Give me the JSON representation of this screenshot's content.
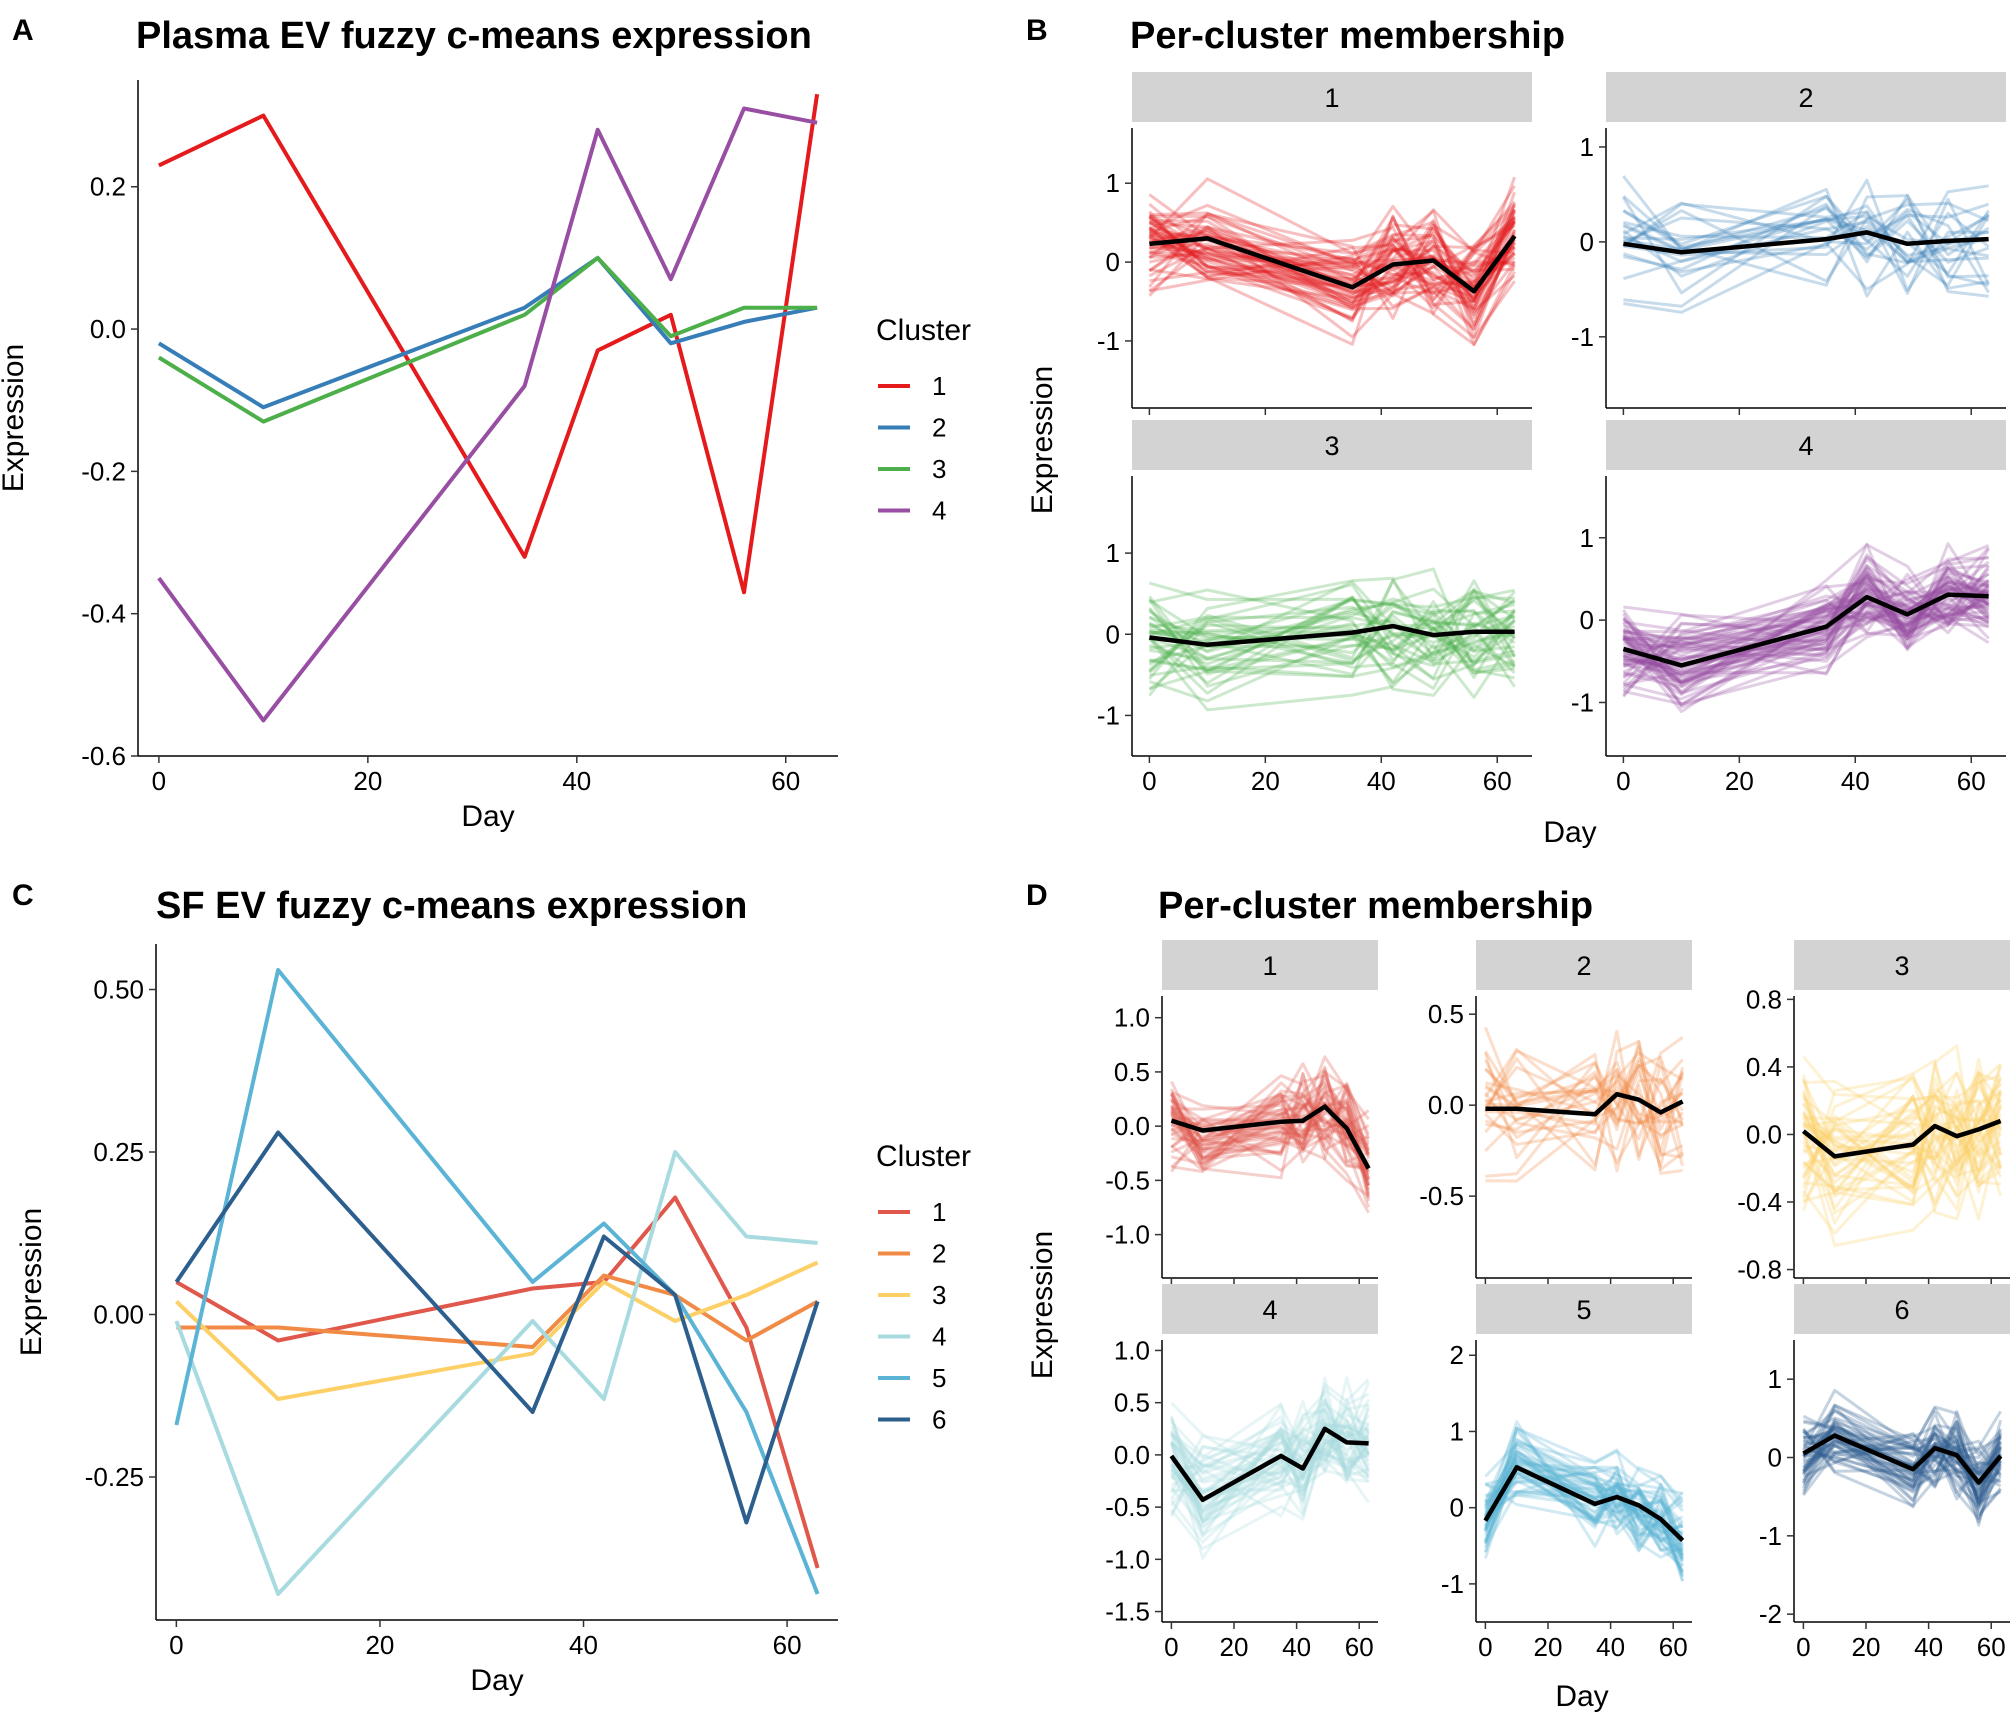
{
  "figure": {
    "panels": [
      {
        "letter": "A",
        "title": "Plasma EV fuzzy c-means expression"
      },
      {
        "letter": "B",
        "title": "Per-cluster membership"
      },
      {
        "letter": "C",
        "title": "SF EV fuzzy c-means expression"
      },
      {
        "letter": "D",
        "title": "Per-cluster membership"
      }
    ]
  },
  "chart_data": [
    {
      "id": "A",
      "type": "line",
      "title": "Plasma EV fuzzy c-means expression",
      "xlabel": "Day",
      "ylabel": "Expression",
      "x": [
        0,
        10,
        35,
        42,
        49,
        56,
        63
      ],
      "xlim": [
        -2,
        65
      ],
      "ylim": [
        -0.6,
        0.35
      ],
      "xticks": [
        0,
        20,
        40,
        60
      ],
      "xtick_labels": [
        "0",
        "20",
        "40",
        "60"
      ],
      "yticks": [
        -0.6,
        -0.4,
        -0.2,
        0.0,
        0.2
      ],
      "ytick_labels": [
        "-0.6",
        "-0.4",
        "-0.2",
        "0.0",
        "0.2"
      ],
      "grid": false,
      "legend": {
        "title": "Cluster",
        "position": "right"
      },
      "series": [
        {
          "name": "1",
          "color": "#E41A1C",
          "values": [
            0.23,
            0.3,
            -0.32,
            -0.03,
            0.02,
            -0.37,
            0.33
          ]
        },
        {
          "name": "2",
          "color": "#377EB8",
          "values": [
            -0.02,
            -0.11,
            0.03,
            0.1,
            -0.02,
            0.01,
            0.03
          ]
        },
        {
          "name": "3",
          "color": "#4DAF4A",
          "values": [
            -0.04,
            -0.13,
            0.02,
            0.1,
            -0.01,
            0.03,
            0.03
          ]
        },
        {
          "name": "4",
          "color": "#984EA3",
          "values": [
            -0.35,
            -0.55,
            -0.08,
            0.28,
            0.07,
            0.31,
            0.29
          ]
        }
      ]
    },
    {
      "id": "B",
      "type": "line",
      "title": "Per-cluster membership",
      "xlabel": "Day",
      "ylabel": "Expression",
      "x": [
        0,
        10,
        35,
        42,
        49,
        56,
        63
      ],
      "xticks": [
        0,
        20,
        40,
        60
      ],
      "xtick_labels": [
        "0",
        "20",
        "40",
        "60"
      ],
      "grid": false,
      "facets": [
        {
          "label": "1",
          "color": "#E41A1C",
          "ylim": [
            -1.85,
            1.7
          ],
          "yticks": [
            -1,
            0,
            1
          ],
          "ytick_labels": [
            "-1",
            "0",
            "1"
          ],
          "member_count": 55,
          "spread": 0.35,
          "center": [
            0.23,
            0.3,
            -0.32,
            -0.03,
            0.02,
            -0.37,
            0.33
          ]
        },
        {
          "label": "2",
          "color": "#377EB8",
          "ylim": [
            -1.75,
            1.2
          ],
          "yticks": [
            -1,
            0,
            1
          ],
          "ytick_labels": [
            "-1",
            "0",
            "1"
          ],
          "member_count": 22,
          "spread": 0.35,
          "center": [
            -0.02,
            -0.11,
            0.03,
            0.1,
            -0.02,
            0.01,
            0.03
          ]
        },
        {
          "label": "3",
          "color": "#4DAF4A",
          "ylim": [
            -1.5,
            1.95
          ],
          "yticks": [
            -1,
            0,
            1
          ],
          "ytick_labels": [
            "-1",
            "0",
            "1"
          ],
          "member_count": 40,
          "spread": 0.38,
          "center": [
            -0.04,
            -0.13,
            0.02,
            0.1,
            -0.01,
            0.03,
            0.03
          ]
        },
        {
          "label": "4",
          "color": "#984EA3",
          "ylim": [
            -1.65,
            1.75
          ],
          "yticks": [
            -1,
            0,
            1
          ],
          "ytick_labels": [
            "-1",
            "0",
            "1"
          ],
          "member_count": 65,
          "spread": 0.3,
          "center": [
            -0.35,
            -0.55,
            -0.08,
            0.28,
            0.07,
            0.31,
            0.29
          ]
        }
      ]
    },
    {
      "id": "C",
      "type": "line",
      "title": "SF EV fuzzy c-means expression",
      "xlabel": "Day",
      "ylabel": "Expression",
      "x": [
        0,
        10,
        35,
        42,
        49,
        56,
        63
      ],
      "xlim": [
        -2,
        65
      ],
      "ylim": [
        -0.47,
        0.57
      ],
      "xticks": [
        0,
        20,
        40,
        60
      ],
      "xtick_labels": [
        "0",
        "20",
        "40",
        "60"
      ],
      "yticks": [
        -0.25,
        0.0,
        0.25,
        0.5
      ],
      "ytick_labels": [
        "-0.25",
        "0.00",
        "0.25",
        "0.50"
      ],
      "grid": false,
      "legend": {
        "title": "Cluster",
        "position": "right"
      },
      "series": [
        {
          "name": "1",
          "color": "#E0574B",
          "values": [
            0.05,
            -0.04,
            0.04,
            0.05,
            0.18,
            -0.02,
            -0.39
          ]
        },
        {
          "name": "2",
          "color": "#F08A45",
          "values": [
            -0.02,
            -0.02,
            -0.05,
            0.06,
            0.03,
            -0.04,
            0.02
          ]
        },
        {
          "name": "3",
          "color": "#FDD067",
          "values": [
            0.02,
            -0.13,
            -0.06,
            0.05,
            -0.01,
            0.03,
            0.08
          ]
        },
        {
          "name": "4",
          "color": "#A8DBE0",
          "values": [
            -0.01,
            -0.43,
            -0.01,
            -0.13,
            0.25,
            0.12,
            0.11
          ]
        },
        {
          "name": "5",
          "color": "#5BB4D5",
          "values": [
            -0.17,
            0.53,
            0.05,
            0.14,
            0.03,
            -0.15,
            -0.43
          ]
        },
        {
          "name": "6",
          "color": "#2D5F8E",
          "values": [
            0.05,
            0.28,
            -0.15,
            0.12,
            0.03,
            -0.32,
            0.02
          ]
        }
      ]
    },
    {
      "id": "D",
      "type": "line",
      "title": "Per-cluster membership",
      "xlabel": "Day",
      "ylabel": "Expression",
      "x": [
        0,
        10,
        35,
        42,
        49,
        56,
        63
      ],
      "xticks": [
        0,
        20,
        40,
        60
      ],
      "xtick_labels": [
        "0",
        "20",
        "40",
        "60"
      ],
      "grid": false,
      "facets": [
        {
          "label": "1",
          "color": "#E0574B",
          "ylim": [
            -1.4,
            1.2
          ],
          "yticks": [
            -1.0,
            -0.5,
            0.0,
            0.5,
            1.0
          ],
          "ytick_labels": [
            "-1.0",
            "-0.5",
            "0.0",
            "0.5",
            "1.0"
          ],
          "member_count": 45,
          "spread": 0.25,
          "center": [
            0.05,
            -0.04,
            0.04,
            0.05,
            0.18,
            -0.02,
            -0.39
          ]
        },
        {
          "label": "2",
          "color": "#F08A45",
          "ylim": [
            -0.95,
            0.6
          ],
          "yticks": [
            -0.5,
            0.0,
            0.5
          ],
          "ytick_labels": [
            "-0.5",
            "0.0",
            "0.5"
          ],
          "member_count": 25,
          "spread": 0.22,
          "center": [
            -0.02,
            -0.02,
            -0.05,
            0.06,
            0.03,
            -0.04,
            0.02
          ]
        },
        {
          "label": "3",
          "color": "#FDD067",
          "ylim": [
            -0.85,
            0.82
          ],
          "yticks": [
            -0.8,
            -0.4,
            0.0,
            0.4,
            0.8
          ],
          "ytick_labels": [
            "-0.8",
            "-0.4",
            "0.0",
            "0.4",
            "0.8"
          ],
          "member_count": 45,
          "spread": 0.25,
          "center": [
            0.02,
            -0.13,
            -0.06,
            0.05,
            -0.01,
            0.03,
            0.08
          ]
        },
        {
          "label": "4",
          "color": "#A8DBE0",
          "ylim": [
            -1.6,
            1.1
          ],
          "yticks": [
            -1.5,
            -1.0,
            -0.5,
            0.0,
            0.5,
            1.0
          ],
          "ytick_labels": [
            "-1.5",
            "-1.0",
            "-0.5",
            "0.0",
            "0.5",
            "1.0"
          ],
          "member_count": 50,
          "spread": 0.3,
          "center": [
            -0.01,
            -0.43,
            -0.01,
            -0.13,
            0.25,
            0.12,
            0.11
          ]
        },
        {
          "label": "5",
          "color": "#5BB4D5",
          "ylim": [
            -1.5,
            2.2
          ],
          "yticks": [
            -1,
            0,
            1,
            2
          ],
          "ytick_labels": [
            "-1",
            "0",
            "1",
            "2"
          ],
          "member_count": 50,
          "spread": 0.3,
          "center": [
            -0.17,
            0.53,
            0.05,
            0.14,
            0.03,
            -0.15,
            -0.43
          ]
        },
        {
          "label": "6",
          "color": "#2D5F8E",
          "ylim": [
            -2.1,
            1.5
          ],
          "yticks": [
            -2,
            -1,
            0,
            1
          ],
          "ytick_labels": [
            "-2",
            "-1",
            "0",
            "1"
          ],
          "member_count": 50,
          "spread": 0.3,
          "center": [
            0.05,
            0.28,
            -0.15,
            0.12,
            0.03,
            -0.32,
            0.02
          ]
        }
      ]
    }
  ]
}
